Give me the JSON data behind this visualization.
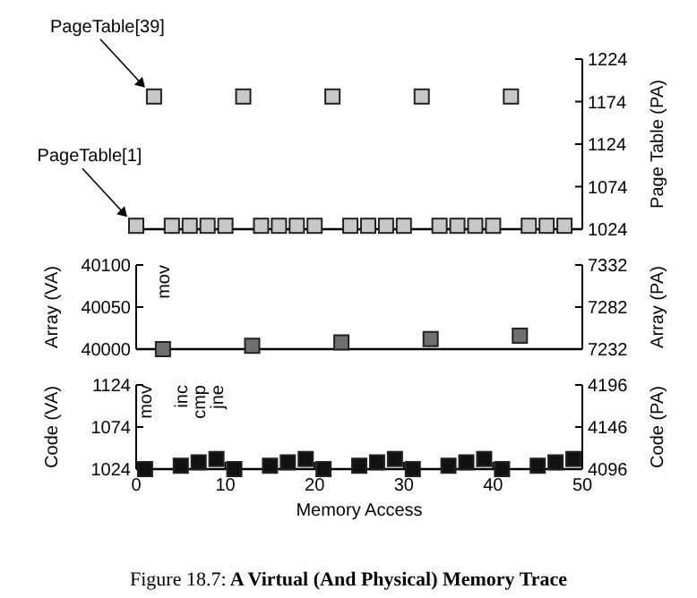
{
  "chart_data": [
    {
      "type": "scatter",
      "y2label": "Page Table (PA)",
      "xlim": [
        0,
        50
      ],
      "y2lim": [
        1024,
        1224
      ],
      "y2ticks": [
        1024,
        1074,
        1124,
        1174,
        1224
      ],
      "tick_labels": "y",
      "marker": "square",
      "series": [
        {
          "color": "#c8c8c8",
          "axis": "y2",
          "x": [
            0,
            2,
            4,
            6,
            8,
            10,
            12,
            14,
            16,
            18,
            20,
            22,
            24,
            26,
            28,
            30,
            32,
            34,
            36,
            38,
            40,
            42,
            44,
            46,
            48
          ],
          "values": [
            1028,
            1180,
            1028,
            1028,
            1028,
            1028,
            1180,
            1028,
            1028,
            1028,
            1028,
            1180,
            1028,
            1028,
            1028,
            1028,
            1180,
            1028,
            1028,
            1028,
            1028,
            1180,
            1028,
            1028,
            1028
          ]
        }
      ],
      "annotations": [
        "PageTable[39]",
        "PageTable[1]"
      ]
    },
    {
      "type": "scatter",
      "ylabel": "Array (VA)",
      "y2label": "Array (PA)",
      "xlim": [
        0,
        50
      ],
      "ylim": [
        40000,
        40100
      ],
      "yticks": [
        40000,
        40050,
        40100
      ],
      "y2lim": [
        7232,
        7332
      ],
      "y2ticks": [
        7232,
        7282,
        7332
      ],
      "tick_labels": "y",
      "marker": "square",
      "series": [
        {
          "color": "#707070",
          "x": [
            3,
            13,
            23,
            33,
            43
          ],
          "values": [
            40000,
            40004,
            40008,
            40012,
            40016
          ]
        }
      ],
      "annotations": [
        "mov"
      ]
    },
    {
      "type": "scatter",
      "xlabel": "Memory Access",
      "ylabel": "Code (VA)",
      "y2label": "Code (PA)",
      "xlim": [
        0,
        50
      ],
      "xticks": [
        0,
        10,
        20,
        30,
        40,
        50
      ],
      "ylim": [
        1024,
        1124
      ],
      "yticks": [
        1024,
        1074,
        1124
      ],
      "y2lim": [
        4096,
        4196
      ],
      "y2ticks": [
        4096,
        4146,
        4196
      ],
      "marker": "square",
      "series": [
        {
          "color": "#111111",
          "x": [
            1,
            5,
            7,
            9,
            11,
            15,
            17,
            19,
            21,
            25,
            27,
            29,
            31,
            35,
            37,
            39,
            41,
            45,
            47,
            49
          ],
          "values": [
            1024,
            1028,
            1032,
            1036,
            1024,
            1028,
            1032,
            1036,
            1024,
            1028,
            1032,
            1036,
            1024,
            1028,
            1032,
            1036,
            1024,
            1028,
            1032,
            1036
          ]
        }
      ],
      "annotations": [
        "mov",
        "inc",
        "cmp",
        "jne",
        "Figure 18.7: A Virtual (And Physical) Memory Trace"
      ]
    }
  ]
}
